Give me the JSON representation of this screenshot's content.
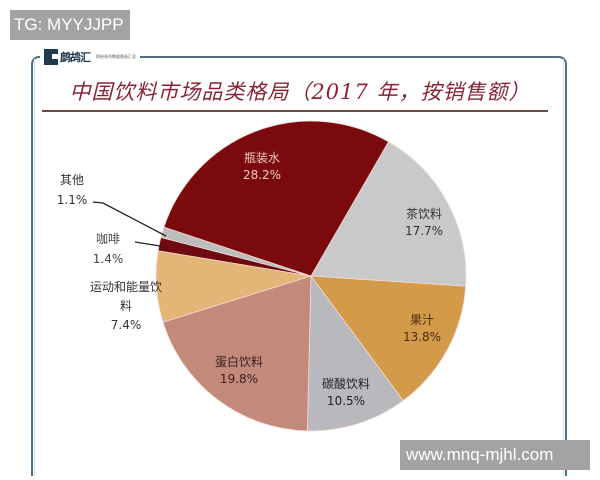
{
  "watermarks": {
    "top_left": "TG: MYYJJPP",
    "bottom_right": "www.mnq-mjhl.com"
  },
  "logo": {
    "name": "鹧鸪汇",
    "subtitle": "财经系列数据图表汇总"
  },
  "chart_data": {
    "type": "pie",
    "title": "中国饮料市场品类格局（2017 年，按销售额）",
    "start_angle_deg": 30,
    "direction": "clockwise",
    "unit": "%",
    "categories": [
      "茶饮料",
      "果汁",
      "碳酸饮料",
      "蛋白饮料",
      "运动和能量饮料",
      "咖啡",
      "其他",
      "瓶装水"
    ],
    "values": [
      17.7,
      13.8,
      10.5,
      19.8,
      7.4,
      1.4,
      1.1,
      28.2
    ],
    "colors": [
      "#c9c9cb",
      "#d39a4a",
      "#b9b8bc",
      "#c38a7c",
      "#e3b677",
      "#6e0a10",
      "#bdbdbd",
      "#7a0a0e"
    ],
    "labels": [
      {
        "name": "茶饮料",
        "pct": "17.7%"
      },
      {
        "name": "果汁",
        "pct": "13.8%"
      },
      {
        "name": "碳酸饮料",
        "pct": "10.5%"
      },
      {
        "name": "蛋白饮料",
        "pct": "19.8%"
      },
      {
        "name": "运动和能量饮",
        "name2": "料",
        "pct": "7.4%"
      },
      {
        "name": "咖啡",
        "pct": "1.4%"
      },
      {
        "name": "其他",
        "pct": "1.1%"
      },
      {
        "name": "瓶装水",
        "pct": "28.2%"
      }
    ],
    "legend": "none (direct labels with leader lines for small slices)"
  }
}
